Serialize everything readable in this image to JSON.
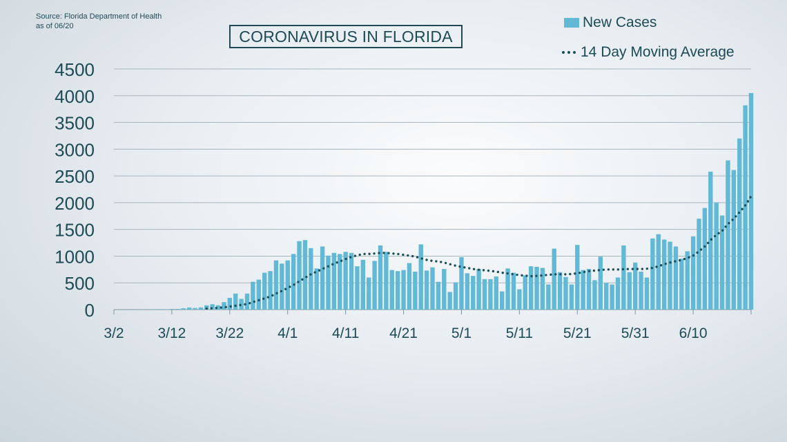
{
  "source": {
    "line1": "Source: Florida Department of Health",
    "line2": "as of 06/20"
  },
  "legend": {
    "bars_label": "New Cases",
    "line_label": "14 Day Moving Average"
  },
  "colors": {
    "bar": "#62b9d6",
    "line": "#1a4f5c",
    "text": "#1c4a55",
    "grid": "#a7b5bd"
  },
  "chart_data": {
    "type": "bar",
    "title": "CORONAVIRUS IN FLORIDA",
    "xlabel": "",
    "ylabel": "",
    "ylim": [
      0,
      4500
    ],
    "yticks": [
      0,
      500,
      1000,
      1500,
      2000,
      2500,
      3000,
      3500,
      4000,
      4500
    ],
    "xtick_labels": [
      "3/2",
      "3/12",
      "3/22",
      "4/1",
      "4/11",
      "4/21",
      "5/1",
      "5/11",
      "5/21",
      "5/31",
      "6/10"
    ],
    "grid": "horizontal",
    "legend_position": "top-right",
    "x_start": "3/2",
    "x_end": "6/20",
    "series": [
      {
        "name": "New Cases",
        "type": "bar",
        "values": [
          0,
          0,
          0,
          0,
          2,
          2,
          2,
          7,
          7,
          7,
          11,
          13,
          25,
          40,
          30,
          40,
          80,
          100,
          80,
          140,
          220,
          300,
          200,
          300,
          520,
          560,
          690,
          720,
          920,
          860,
          920,
          1040,
          1280,
          1300,
          1150,
          770,
          1180,
          1010,
          1060,
          1040,
          1080,
          1060,
          810,
          930,
          600,
          910,
          1200,
          1080,
          740,
          720,
          740,
          870,
          710,
          1220,
          730,
          790,
          520,
          760,
          330,
          510,
          980,
          680,
          630,
          760,
          570,
          570,
          620,
          340,
          770,
          690,
          380,
          640,
          810,
          800,
          780,
          470,
          1140,
          700,
          610,
          470,
          1210,
          740,
          760,
          550,
          990,
          500,
          470,
          600,
          1200,
          700,
          880,
          710,
          600,
          1330,
          1410,
          1310,
          1270,
          1180,
          950,
          1090,
          1370,
          1700,
          1900,
          2580,
          2000,
          1760,
          2790,
          2610,
          3200,
          3820,
          4050
        ]
      },
      {
        "name": "14 Day Moving Average",
        "type": "line",
        "style": "dotted",
        "values": [
          0,
          0,
          0,
          0,
          0,
          1,
          1,
          2,
          2,
          3,
          4,
          5,
          7,
          9,
          12,
          15,
          20,
          26,
          32,
          42,
          55,
          72,
          88,
          105,
          140,
          175,
          210,
          245,
          300,
          350,
          405,
          460,
          530,
          595,
          660,
          710,
          760,
          810,
          860,
          900,
          945,
          985,
          1015,
          1040,
          1040,
          1050,
          1060,
          1060,
          1050,
          1040,
          1025,
          1010,
          990,
          960,
          930,
          910,
          900,
          880,
          850,
          820,
          800,
          780,
          760,
          745,
          735,
          725,
          710,
          690,
          675,
          660,
          645,
          635,
          625,
          630,
          640,
          650,
          660,
          660,
          660,
          665,
          680,
          700,
          720,
          730,
          740,
          750,
          750,
          750,
          755,
          760,
          760,
          760,
          765,
          780,
          810,
          850,
          880,
          905,
          930,
          965,
          1010,
          1090,
          1180,
          1300,
          1400,
          1470,
          1600,
          1700,
          1820,
          1950,
          2120
        ]
      }
    ]
  }
}
